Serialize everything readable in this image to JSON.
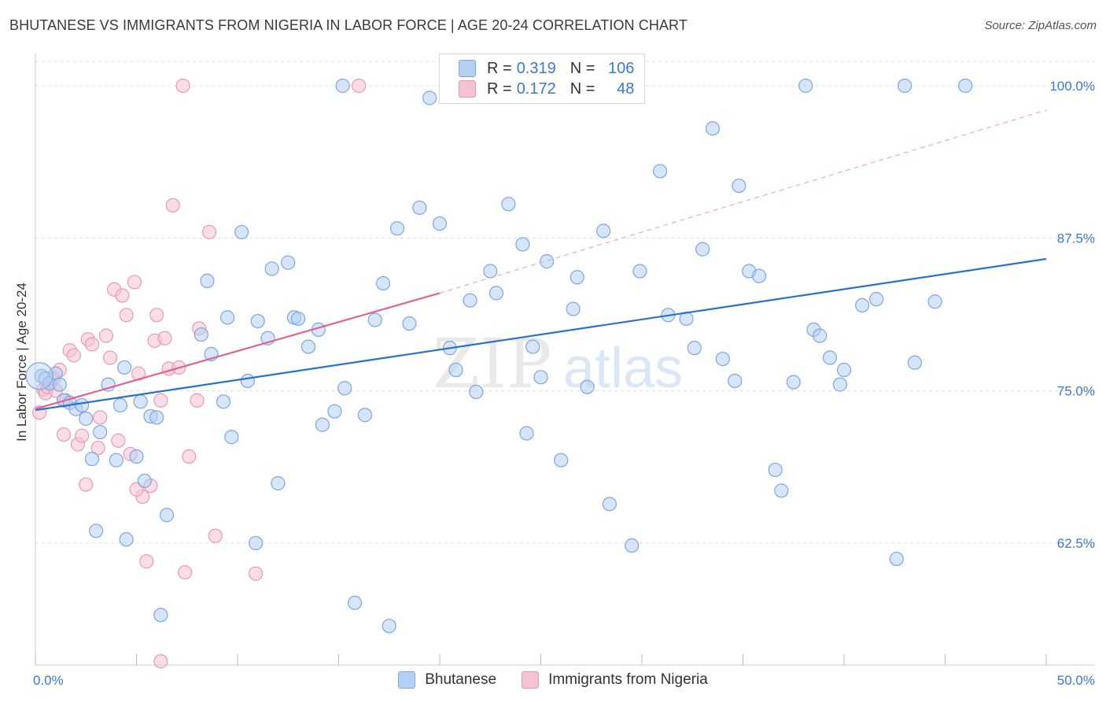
{
  "title": "BHUTANESE VS IMMIGRANTS FROM NIGERIA IN LABOR FORCE | AGE 20-24 CORRELATION CHART",
  "source": "Source: ZipAtlas.com",
  "watermark": {
    "zip": "ZIP",
    "atlas": "atlas"
  },
  "legend": {
    "row1": {
      "r_label": "R =",
      "r_value": "0.319",
      "n_label": "N =",
      "n_value": "106"
    },
    "row2": {
      "r_label": "R =",
      "r_value": "0.172",
      "n_label": "N =",
      "n_value": "48"
    }
  },
  "colors": {
    "blue_fill": "#b5cff2",
    "blue_stroke": "#7ea6df",
    "blue_line": "#2a6fd1",
    "pink_fill": "#f6c1d3",
    "pink_stroke": "#e89ab5",
    "pink_line": "#e0628f",
    "grid": "#dddddd",
    "tick_label": "#3b78d8"
  },
  "chart_data": {
    "type": "scatter",
    "title": "BHUTANESE VS IMMIGRANTS FROM NIGERIA IN LABOR FORCE | AGE 20-24 CORRELATION CHART",
    "xlabel": "",
    "ylabel": "In Labor Force | Age 20-24",
    "xlim": [
      0,
      50
    ],
    "ylim": [
      52.5,
      102
    ],
    "x_tick_labels": [
      "0.0%",
      "50.0%"
    ],
    "y_ticks": [
      62.5,
      75.0,
      87.5,
      100.0
    ],
    "y_tick_labels": [
      "62.5%",
      "75.0%",
      "87.5%",
      "100.0%"
    ],
    "legend_position": "top-center",
    "series": [
      {
        "name": "Bhutanese",
        "r": 0.319,
        "n": 106,
        "trend": {
          "x": [
            0,
            50
          ],
          "y": [
            73.4,
            85.8
          ],
          "style": "solid"
        },
        "points": [
          [
            0.3,
            76.2
          ],
          [
            0.5,
            76.0
          ],
          [
            0.7,
            75.6
          ],
          [
            1.0,
            76.4
          ],
          [
            1.2,
            75.5
          ],
          [
            1.4,
            74.2
          ],
          [
            1.7,
            74.0
          ],
          [
            2.0,
            73.5
          ],
          [
            2.3,
            73.8
          ],
          [
            2.5,
            72.7
          ],
          [
            2.8,
            69.4
          ],
          [
            3.0,
            63.5
          ],
          [
            3.2,
            71.6
          ],
          [
            3.6,
            75.5
          ],
          [
            4.0,
            69.3
          ],
          [
            4.2,
            73.8
          ],
          [
            4.4,
            76.9
          ],
          [
            4.5,
            62.8
          ],
          [
            5.0,
            69.6
          ],
          [
            5.2,
            74.1
          ],
          [
            5.4,
            67.6
          ],
          [
            5.7,
            72.9
          ],
          [
            6.0,
            72.8
          ],
          [
            6.2,
            56.6
          ],
          [
            6.5,
            64.8
          ],
          [
            8.2,
            79.6
          ],
          [
            8.5,
            84.0
          ],
          [
            8.7,
            78.0
          ],
          [
            9.3,
            74.1
          ],
          [
            9.5,
            81.0
          ],
          [
            9.7,
            71.2
          ],
          [
            10.2,
            88.0
          ],
          [
            10.5,
            75.8
          ],
          [
            10.9,
            62.5
          ],
          [
            11.0,
            80.7
          ],
          [
            11.5,
            79.3
          ],
          [
            11.7,
            85.0
          ],
          [
            12.0,
            67.4
          ],
          [
            12.5,
            85.5
          ],
          [
            12.8,
            81.0
          ],
          [
            13.0,
            80.9
          ],
          [
            13.5,
            78.6
          ],
          [
            14.0,
            80.0
          ],
          [
            14.2,
            72.2
          ],
          [
            14.8,
            73.3
          ],
          [
            15.3,
            75.2
          ],
          [
            15.8,
            57.6
          ],
          [
            16.3,
            73.0
          ],
          [
            16.8,
            80.8
          ],
          [
            17.2,
            83.8
          ],
          [
            17.5,
            55.7
          ],
          [
            17.9,
            88.3
          ],
          [
            18.5,
            80.5
          ],
          [
            19.0,
            90.0
          ],
          [
            19.5,
            99.0
          ],
          [
            20.0,
            88.7
          ],
          [
            20.5,
            78.5
          ],
          [
            20.8,
            76.7
          ],
          [
            21.5,
            82.4
          ],
          [
            21.8,
            74.9
          ],
          [
            22.5,
            84.8
          ],
          [
            22.8,
            83.0
          ],
          [
            23.4,
            90.3
          ],
          [
            24.1,
            87.0
          ],
          [
            24.3,
            71.5
          ],
          [
            24.6,
            78.6
          ],
          [
            25.0,
            76.1
          ],
          [
            25.3,
            85.6
          ],
          [
            26.0,
            69.3
          ],
          [
            26.6,
            81.7
          ],
          [
            26.8,
            84.3
          ],
          [
            27.3,
            75.3
          ],
          [
            28.1,
            88.1
          ],
          [
            28.4,
            65.7
          ],
          [
            29.5,
            62.3
          ],
          [
            29.9,
            84.8
          ],
          [
            30.9,
            93.0
          ],
          [
            31.3,
            81.2
          ],
          [
            32.2,
            80.9
          ],
          [
            32.6,
            78.5
          ],
          [
            33.0,
            86.6
          ],
          [
            33.5,
            96.5
          ],
          [
            34.0,
            77.6
          ],
          [
            34.6,
            75.8
          ],
          [
            34.8,
            91.8
          ],
          [
            35.3,
            84.8
          ],
          [
            35.8,
            84.4
          ],
          [
            36.6,
            68.5
          ],
          [
            36.9,
            66.8
          ],
          [
            37.5,
            75.7
          ],
          [
            38.5,
            80.0
          ],
          [
            38.8,
            79.5
          ],
          [
            39.3,
            77.7
          ],
          [
            39.8,
            75.5
          ],
          [
            40.0,
            76.7
          ],
          [
            40.9,
            82.0
          ],
          [
            41.6,
            82.5
          ],
          [
            42.6,
            61.2
          ],
          [
            43.0,
            100.0
          ],
          [
            43.5,
            77.3
          ],
          [
            44.5,
            82.3
          ],
          [
            46.0,
            100.0
          ],
          [
            15.2,
            100.0
          ],
          [
            38.1,
            100.0
          ]
        ]
      },
      {
        "name": "Immigrants from Nigeria",
        "r": 0.172,
        "n": 48,
        "trend": {
          "x": [
            0,
            20
          ],
          "y": [
            73.5,
            83.0
          ],
          "style": "solid",
          "extension": {
            "x": [
              20,
              50
            ],
            "y": [
              83.0,
              98.0
            ],
            "style": "dashed"
          }
        },
        "points": [
          [
            0.2,
            73.2
          ],
          [
            0.4,
            75.1
          ],
          [
            0.5,
            74.8
          ],
          [
            0.6,
            75.3
          ],
          [
            0.9,
            76.0
          ],
          [
            1.0,
            75.0
          ],
          [
            1.2,
            76.7
          ],
          [
            1.4,
            71.4
          ],
          [
            1.5,
            74.2
          ],
          [
            1.7,
            78.3
          ],
          [
            1.9,
            77.9
          ],
          [
            2.1,
            70.6
          ],
          [
            2.3,
            71.3
          ],
          [
            2.5,
            67.3
          ],
          [
            2.6,
            79.2
          ],
          [
            2.8,
            78.8
          ],
          [
            3.1,
            70.3
          ],
          [
            3.2,
            72.8
          ],
          [
            3.5,
            79.5
          ],
          [
            3.7,
            77.7
          ],
          [
            3.9,
            83.3
          ],
          [
            4.1,
            70.9
          ],
          [
            4.3,
            82.8
          ],
          [
            4.5,
            81.2
          ],
          [
            4.7,
            69.8
          ],
          [
            4.9,
            83.9
          ],
          [
            5.1,
            76.4
          ],
          [
            5.3,
            66.3
          ],
          [
            5.5,
            61.0
          ],
          [
            5.7,
            67.2
          ],
          [
            5.9,
            79.1
          ],
          [
            6.0,
            81.2
          ],
          [
            6.2,
            74.2
          ],
          [
            6.4,
            79.3
          ],
          [
            6.6,
            76.8
          ],
          [
            6.8,
            90.2
          ],
          [
            7.1,
            76.9
          ],
          [
            7.3,
            100.0
          ],
          [
            7.4,
            60.1
          ],
          [
            7.6,
            69.6
          ],
          [
            8.0,
            74.2
          ],
          [
            8.1,
            80.1
          ],
          [
            8.6,
            88.0
          ],
          [
            8.9,
            63.1
          ],
          [
            10.9,
            60.0
          ],
          [
            16.0,
            100.0
          ],
          [
            6.2,
            52.8
          ],
          [
            5.0,
            66.9
          ]
        ]
      }
    ]
  }
}
